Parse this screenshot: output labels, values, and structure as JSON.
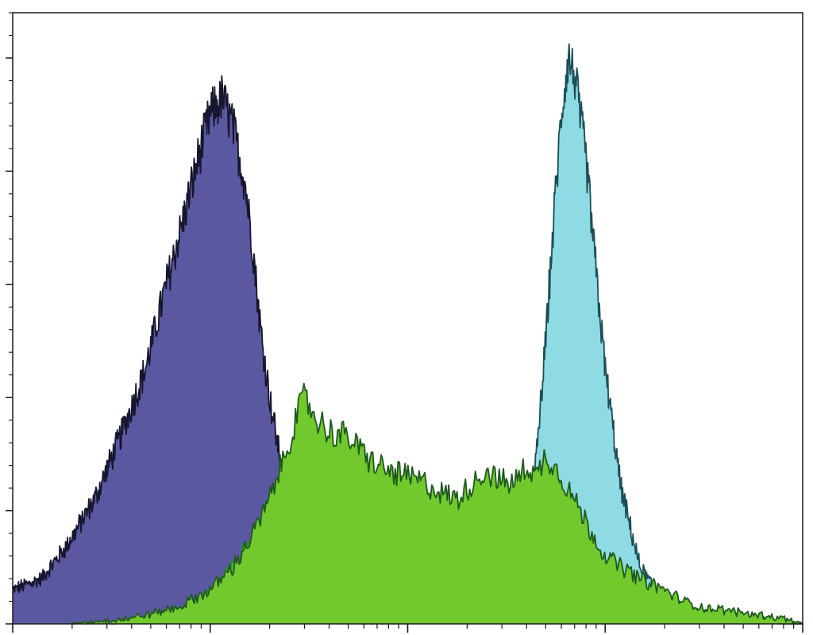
{
  "chart_data": {
    "type": "area",
    "title": "",
    "xlabel": "",
    "ylabel": "",
    "x_scale": "log",
    "xlim": [
      1,
      10000
    ],
    "ylim": [
      0,
      1.08
    ],
    "grid": false,
    "legend": "none",
    "series": [
      {
        "fill": "#5b58a2",
        "stroke": "#16162e",
        "x": [
          1,
          1.4,
          1.9,
          2.6,
          3.5,
          4.7,
          6.0,
          7.5,
          8.8,
          10,
          11.5,
          13,
          15,
          16.5,
          18,
          20,
          24,
          28,
          30,
          34,
          40,
          50
        ],
        "values": [
          0.06,
          0.08,
          0.14,
          0.22,
          0.33,
          0.45,
          0.6,
          0.73,
          0.83,
          0.9,
          0.93,
          0.88,
          0.78,
          0.66,
          0.52,
          0.4,
          0.24,
          0.1,
          0.05,
          0.02,
          0.01,
          0.0
        ]
      },
      {
        "fill": "#42b83c",
        "stroke": "#2c8a2a",
        "x": [
          3,
          5,
          8,
          10,
          13,
          17,
          21,
          24,
          26,
          28,
          30,
          35,
          42,
          50,
          60,
          80,
          100,
          150,
          200,
          300,
          400,
          500,
          600,
          700,
          800,
          1000,
          1500,
          2000,
          3000,
          5000,
          10000
        ],
        "values": [
          0.0,
          0.01,
          0.03,
          0.06,
          0.1,
          0.16,
          0.22,
          0.27,
          0.3,
          0.25,
          0.16,
          0.06,
          0.02,
          0.01,
          0.0,
          0.0,
          0.01,
          0.01,
          0.02,
          0.05,
          0.12,
          0.22,
          0.24,
          0.2,
          0.16,
          0.1,
          0.06,
          0.04,
          0.02,
          0.01,
          0.0
        ]
      },
      {
        "fill": "#8fdbe3",
        "stroke": "#1c4e57",
        "x": [
          200,
          300,
          350,
          400,
          450,
          500,
          550,
          600,
          650,
          700,
          800,
          900,
          1000,
          1200,
          1500,
          1800,
          2000,
          2500,
          3000,
          5000,
          10000
        ],
        "values": [
          0.0,
          0.01,
          0.05,
          0.14,
          0.3,
          0.5,
          0.72,
          0.9,
          1.0,
          0.97,
          0.82,
          0.62,
          0.45,
          0.24,
          0.1,
          0.06,
          0.05,
          0.03,
          0.02,
          0.01,
          0.0
        ]
      },
      {
        "fill": "#72c92e",
        "stroke": "#1e5a1c",
        "x": [
          2,
          4,
          7,
          10,
          13,
          16,
          20,
          24,
          27,
          30,
          35,
          40,
          50,
          60,
          70,
          80,
          100,
          120,
          150,
          180,
          200,
          250,
          300,
          350,
          400,
          450,
          500,
          600,
          700,
          800,
          1000,
          1500,
          2000,
          2500,
          3000,
          5000,
          8000,
          10000
        ],
        "values": [
          0.0,
          0.01,
          0.03,
          0.06,
          0.1,
          0.15,
          0.22,
          0.3,
          0.36,
          0.4,
          0.36,
          0.34,
          0.33,
          0.3,
          0.28,
          0.27,
          0.26,
          0.25,
          0.23,
          0.22,
          0.24,
          0.27,
          0.25,
          0.25,
          0.28,
          0.26,
          0.3,
          0.26,
          0.22,
          0.18,
          0.12,
          0.08,
          0.06,
          0.04,
          0.03,
          0.02,
          0.01,
          0.0
        ]
      }
    ]
  }
}
